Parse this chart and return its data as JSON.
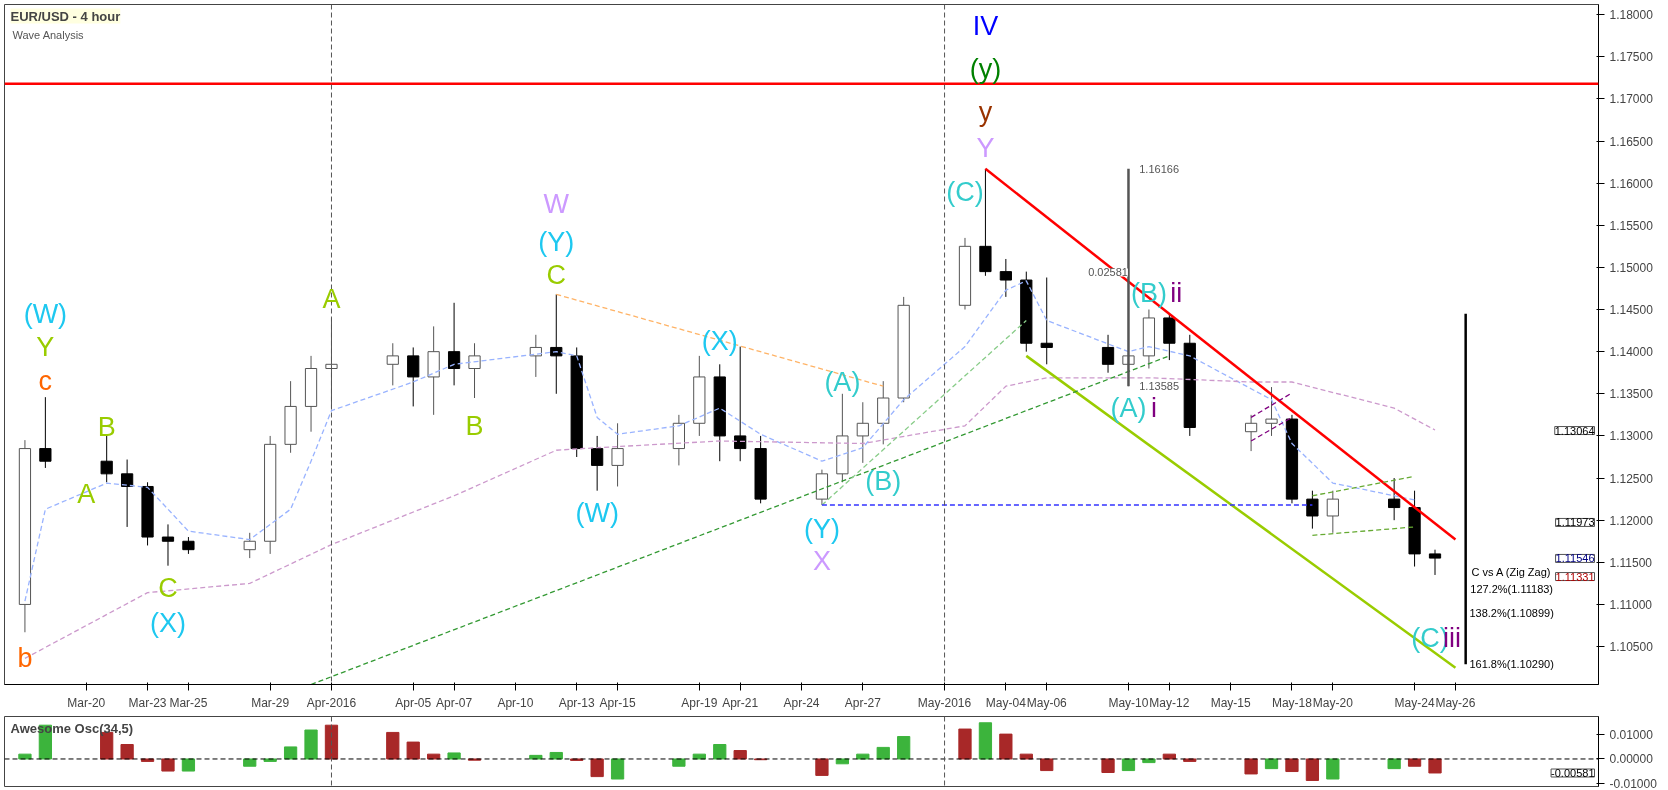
{
  "chart_data": [
    {
      "type": "candlestick",
      "title": "EUR/USD - 4 hour",
      "subtitle": "Wave Analysis",
      "x": [
        "2016-03-17",
        "2016-03-18",
        "2016-03-21",
        "2016-03-22",
        "2016-03-23",
        "2016-03-24",
        "2016-03-25",
        "2016-03-28",
        "2016-03-29",
        "2016-03-30",
        "2016-03-31",
        "2016-04-01",
        "2016-04-04",
        "2016-04-05",
        "2016-04-06",
        "2016-04-07",
        "2016-04-08",
        "2016-04-11",
        "2016-04-12",
        "2016-04-13",
        "2016-04-14",
        "2016-04-15",
        "2016-04-18",
        "2016-04-19",
        "2016-04-20",
        "2016-04-21",
        "2016-04-22",
        "2016-04-25",
        "2016-04-26",
        "2016-04-27",
        "2016-04-28",
        "2016-04-29",
        "2016-05-02",
        "2016-05-03",
        "2016-05-04",
        "2016-05-05",
        "2016-05-06",
        "2016-05-09",
        "2016-05-10",
        "2016-05-11",
        "2016-05-12",
        "2016-05-13",
        "2016-05-16",
        "2016-05-17",
        "2016-05-18",
        "2016-05-19",
        "2016-05-20",
        "2016-05-23",
        "2016-05-24",
        "2016-05-25"
      ],
      "ohlc": [
        [
          1.11,
          1.1295,
          1.1067,
          1.1285
        ],
        [
          1.1285,
          1.1346,
          1.1262,
          1.127
        ],
        [
          1.127,
          1.13,
          1.1245,
          1.1255
        ],
        [
          1.1255,
          1.1272,
          1.1192,
          1.124
        ],
        [
          1.124,
          1.1245,
          1.117,
          1.118
        ],
        [
          1.118,
          1.1195,
          1.1146,
          1.1175
        ],
        [
          1.1175,
          1.118,
          1.116,
          1.1165
        ],
        [
          1.1165,
          1.1185,
          1.1155,
          1.1175
        ],
        [
          1.1175,
          1.13,
          1.116,
          1.129
        ],
        [
          1.129,
          1.1365,
          1.128,
          1.1335
        ],
        [
          1.1335,
          1.1395,
          1.1305,
          1.138
        ],
        [
          1.138,
          1.144,
          1.1333,
          1.1385
        ],
        [
          1.1385,
          1.141,
          1.136,
          1.1395
        ],
        [
          1.1395,
          1.1405,
          1.1335,
          1.137
        ],
        [
          1.137,
          1.143,
          1.1325,
          1.14
        ],
        [
          1.14,
          1.1458,
          1.136,
          1.138
        ],
        [
          1.138,
          1.141,
          1.1345,
          1.1395
        ],
        [
          1.1395,
          1.142,
          1.137,
          1.1405
        ],
        [
          1.1405,
          1.1468,
          1.135,
          1.1395
        ],
        [
          1.1395,
          1.1405,
          1.1275,
          1.1285
        ],
        [
          1.1285,
          1.13,
          1.1235,
          1.1265
        ],
        [
          1.1265,
          1.1315,
          1.124,
          1.1285
        ],
        [
          1.1285,
          1.1325,
          1.1265,
          1.1315
        ],
        [
          1.1315,
          1.1395,
          1.13,
          1.137
        ],
        [
          1.137,
          1.1385,
          1.127,
          1.13
        ],
        [
          1.13,
          1.1406,
          1.127,
          1.1285
        ],
        [
          1.1285,
          1.13,
          1.122,
          1.1225
        ],
        [
          1.1225,
          1.126,
          1.1218,
          1.1255
        ],
        [
          1.1255,
          1.135,
          1.1245,
          1.13
        ],
        [
          1.13,
          1.134,
          1.1268,
          1.1315
        ],
        [
          1.1315,
          1.1365,
          1.129,
          1.1345
        ],
        [
          1.1345,
          1.1465,
          1.134,
          1.1455
        ],
        [
          1.1455,
          1.1535,
          1.145,
          1.1525
        ],
        [
          1.1525,
          1.1617,
          1.149,
          1.1495
        ],
        [
          1.1495,
          1.151,
          1.1465,
          1.1485
        ],
        [
          1.1485,
          1.1495,
          1.14,
          1.141
        ],
        [
          1.141,
          1.1488,
          1.1385,
          1.1405
        ],
        [
          1.1405,
          1.142,
          1.1375,
          1.1385
        ],
        [
          1.1385,
          1.1405,
          1.1359,
          1.1395
        ],
        [
          1.1395,
          1.145,
          1.138,
          1.144
        ],
        [
          1.144,
          1.1445,
          1.139,
          1.141
        ],
        [
          1.141,
          1.142,
          1.13,
          1.131
        ],
        [
          1.1305,
          1.1325,
          1.1282,
          1.1315
        ],
        [
          1.1315,
          1.1358,
          1.13,
          1.132
        ],
        [
          1.132,
          1.1325,
          1.122,
          1.1225
        ],
        [
          1.1225,
          1.1235,
          1.119,
          1.1205
        ],
        [
          1.1205,
          1.1235,
          1.1185,
          1.1225
        ],
        [
          1.1225,
          1.125,
          1.12,
          1.1215
        ],
        [
          1.1215,
          1.1235,
          1.1145,
          1.116
        ],
        [
          1.116,
          1.1165,
          1.1135,
          1.1155
        ]
      ],
      "xlim": [
        "2016-03-16",
        "2016-06-02"
      ],
      "xticks": [
        {
          "value": "2016-03-20",
          "label": "Mar-20"
        },
        {
          "value": "2016-03-23",
          "label": "Mar-23"
        },
        {
          "value": "2016-03-25",
          "label": "Mar-25"
        },
        {
          "value": "2016-03-29",
          "label": "Mar-29"
        },
        {
          "value": "2016-04-01",
          "label": "Apr-2016"
        },
        {
          "value": "2016-04-05",
          "label": "Apr-05"
        },
        {
          "value": "2016-04-07",
          "label": "Apr-07"
        },
        {
          "value": "2016-04-10",
          "label": "Apr-10"
        },
        {
          "value": "2016-04-13",
          "label": "Apr-13"
        },
        {
          "value": "2016-04-15",
          "label": "Apr-15"
        },
        {
          "value": "2016-04-19",
          "label": "Apr-19"
        },
        {
          "value": "2016-04-21",
          "label": "Apr-21"
        },
        {
          "value": "2016-04-24",
          "label": "Apr-24"
        },
        {
          "value": "2016-04-27",
          "label": "Apr-27"
        },
        {
          "value": "2016-05-01",
          "label": "May-2016"
        },
        {
          "value": "2016-05-04",
          "label": "May-04"
        },
        {
          "value": "2016-05-06",
          "label": "May-06"
        },
        {
          "value": "2016-05-10",
          "label": "May-10"
        },
        {
          "value": "2016-05-12",
          "label": "May-12"
        },
        {
          "value": "2016-05-15",
          "label": "May-15"
        },
        {
          "value": "2016-05-18",
          "label": "May-18"
        },
        {
          "value": "2016-05-20",
          "label": "May-20"
        },
        {
          "value": "2016-05-24",
          "label": "May-24"
        },
        {
          "value": "2016-05-26",
          "label": "May-26"
        }
      ],
      "ylim": [
        1.1005,
        1.1812
      ],
      "yticks": [
        {
          "value": 1.105,
          "label": "1.10500"
        },
        {
          "value": 1.11,
          "label": "1.11000"
        },
        {
          "value": 1.115,
          "label": "1.11500"
        },
        {
          "value": 1.12,
          "label": "1.12000"
        },
        {
          "value": 1.125,
          "label": "1.12500"
        },
        {
          "value": 1.13,
          "label": "1.13000"
        },
        {
          "value": 1.135,
          "label": "1.13500"
        },
        {
          "value": 1.14,
          "label": "1.14000"
        },
        {
          "value": 1.145,
          "label": "1.14500"
        },
        {
          "value": 1.15,
          "label": "1.15000"
        },
        {
          "value": 1.155,
          "label": "1.15500"
        },
        {
          "value": 1.16,
          "label": "1.16000"
        },
        {
          "value": 1.165,
          "label": "1.16500"
        },
        {
          "value": 1.17,
          "label": "1.17000"
        },
        {
          "value": 1.175,
          "label": "1.17500"
        },
        {
          "value": 1.18,
          "label": "1.18000"
        }
      ],
      "series": [
        {
          "type": "line",
          "color": "#99b3ff",
          "line_style": "dashed",
          "x": [
            "2016-03-17",
            "2016-03-18",
            "2016-03-21",
            "2016-03-23",
            "2016-03-25",
            "2016-03-28",
            "2016-03-30",
            "2016-03-31",
            "2016-04-01",
            "2016-04-05",
            "2016-04-07",
            "2016-04-12",
            "2016-04-13",
            "2016-04-14",
            "2016-04-15",
            "2016-04-18",
            "2016-04-20",
            "2016-04-22",
            "2016-04-25",
            "2016-04-27",
            "2016-04-29",
            "2016-05-02",
            "2016-05-04",
            "2016-05-05",
            "2016-05-06",
            "2016-05-10",
            "2016-05-11",
            "2016-05-13",
            "2016-05-17",
            "2016-05-18",
            "2016-05-20",
            "2016-05-24"
          ],
          "values": [
            1.1104,
            1.1213,
            1.1244,
            1.1239,
            1.1187,
            1.1177,
            1.1213,
            1.127,
            1.133,
            1.1364,
            1.1385,
            1.14,
            1.1395,
            1.1322,
            1.1302,
            1.1312,
            1.1333,
            1.1302,
            1.127,
            1.1286,
            1.1343,
            1.1406,
            1.1473,
            1.1484,
            1.1437,
            1.14,
            1.1406,
            1.1395,
            1.1343,
            1.1291,
            1.1244,
            1.1224
          ]
        },
        {
          "type": "line",
          "color": "#cc99cc",
          "line_style": "dashed",
          "x": [
            "2016-03-17",
            "2016-03-23",
            "2016-03-28",
            "2016-04-01",
            "2016-04-07",
            "2016-04-12",
            "2016-04-14",
            "2016-04-20",
            "2016-04-27",
            "2016-05-02",
            "2016-05-04",
            "2016-05-06",
            "2016-05-11",
            "2016-05-16",
            "2016-05-18",
            "2016-05-23",
            "2016-05-25"
          ],
          "values": [
            1.1036,
            1.1114,
            1.1125,
            1.1171,
            1.1229,
            1.1283,
            1.1286,
            1.1294,
            1.1291,
            1.1312,
            1.1359,
            1.1369,
            1.1369,
            1.1364,
            1.1364,
            1.1333,
            1.1307
          ]
        },
        {
          "type": "line",
          "color": "#ff0000",
          "line_style": "solid",
          "x": [
            "2016-05-03",
            "2016-05-26"
          ],
          "values": [
            1.1617,
            1.1177
          ]
        },
        {
          "type": "line",
          "color": "#99cc00",
          "line_style": "solid",
          "x": [
            "2016-05-05",
            "2016-05-26"
          ],
          "values": [
            1.1395,
            1.1025
          ]
        },
        {
          "type": "line",
          "color": "#339933",
          "line_style": "dashed",
          "x": [
            "2016-03-31",
            "2016-05-12"
          ],
          "values": [
            1.1005,
            1.1395
          ]
        },
        {
          "type": "line",
          "color": "#88cc88",
          "line_style": "dashed",
          "x": [
            "2016-04-25",
            "2016-05-05"
          ],
          "values": [
            1.1218,
            1.1437
          ]
        },
        {
          "type": "line",
          "color": "#ffb366",
          "line_style": "dashed",
          "x": [
            "2016-04-12",
            "2016-04-28"
          ],
          "values": [
            1.1468,
            1.1359
          ]
        },
        {
          "type": "line",
          "color": "#3333ff",
          "line_style": "dashed",
          "x": [
            "2016-04-25",
            "2016-05-19"
          ],
          "values": [
            1.1218,
            1.1218
          ]
        },
        {
          "type": "line",
          "color": "#800080",
          "line_style": "dashed",
          "x": [
            "2016-05-16",
            "2016-05-18"
          ],
          "values": [
            1.1322,
            1.1351
          ]
        },
        {
          "type": "line",
          "color": "#800080",
          "line_style": "dashed",
          "x": [
            "2016-05-16",
            "2016-05-18"
          ],
          "values": [
            1.1294,
            1.1322
          ]
        },
        {
          "type": "line",
          "color": "#66aa33",
          "line_style": "dashed",
          "x": [
            "2016-05-19",
            "2016-05-24"
          ],
          "values": [
            1.1229,
            1.1252
          ]
        },
        {
          "type": "line",
          "color": "#66aa33",
          "line_style": "dashed",
          "x": [
            "2016-05-19",
            "2016-05-24"
          ],
          "values": [
            1.1182,
            1.1192
          ]
        },
        {
          "type": "line",
          "color": "#555555",
          "line_style": "solid",
          "x": [
            "2016-05-10",
            "2016-05-10"
          ],
          "values": [
            1.1359,
            1.1617
          ]
        },
        {
          "type": "line",
          "color": "#000000",
          "line_style": "solid",
          "x": [
            "2016-05-26T12:00",
            "2016-05-26T12:00"
          ],
          "values": [
            1.1445,
            1.1029
          ]
        }
      ],
      "annotations": [
        "(W)",
        "Y",
        "c",
        "b",
        "A",
        "B",
        "C",
        "(X)",
        "A",
        "B",
        "W",
        "(Y)",
        "C",
        "(W)",
        "(X)",
        "(A)",
        "(B)",
        "(Y)",
        "X",
        "(C)",
        "Y",
        "y",
        "(y)",
        "IV",
        "(B)",
        "ii",
        "(A)",
        "i",
        "(C)",
        "iii",
        "1.16166",
        "0.02581",
        "1.13585",
        "C vs A (Zig Zag)",
        "127.2%(1.11183)",
        "138.2%(1.10899)",
        "161.8%(1.10290)",
        "1.13064",
        "1.11973",
        "1.11546",
        "1.11331"
      ],
      "ref_lines": [
        {
          "axis": "y",
          "value": 1.1718,
          "color": "#ff0000",
          "line_style": "solid"
        },
        {
          "axis": "x",
          "value": "2016-04-01",
          "color": "#555555",
          "line_style": "dashed"
        },
        {
          "axis": "x",
          "value": "2016-05-01",
          "color": "#555555",
          "line_style": "dashed"
        }
      ],
      "grid": false
    },
    {
      "type": "bar",
      "title": "Awesome Osc(34,5)",
      "x": [
        "2016-03-17",
        "2016-03-18",
        "2016-03-21",
        "2016-03-22",
        "2016-03-23",
        "2016-03-24",
        "2016-03-25",
        "2016-03-28",
        "2016-03-29",
        "2016-03-30",
        "2016-03-31",
        "2016-04-01",
        "2016-04-04",
        "2016-04-05",
        "2016-04-06",
        "2016-04-07",
        "2016-04-08",
        "2016-04-11",
        "2016-04-12",
        "2016-04-13",
        "2016-04-14",
        "2016-04-15",
        "2016-04-18",
        "2016-04-19",
        "2016-04-20",
        "2016-04-21",
        "2016-04-22",
        "2016-04-25",
        "2016-04-26",
        "2016-04-27",
        "2016-04-28",
        "2016-04-29",
        "2016-05-02",
        "2016-05-03",
        "2016-05-04",
        "2016-05-05",
        "2016-05-06",
        "2016-05-09",
        "2016-05-10",
        "2016-05-11",
        "2016-05-12",
        "2016-05-13",
        "2016-05-16",
        "2016-05-17",
        "2016-05-18",
        "2016-05-19",
        "2016-05-20",
        "2016-05-23",
        "2016-05-24",
        "2016-05-25"
      ],
      "values": [
        0.002,
        0.014,
        0.011,
        0.006,
        -0.001,
        -0.005,
        -0.005,
        -0.003,
        -0.001,
        0.005,
        0.012,
        0.014,
        0.011,
        0.007,
        0.002,
        0.0025,
        -0.0005,
        0.0015,
        0.0027,
        -0.0006,
        -0.0073,
        -0.0083,
        -0.003,
        0.002,
        0.006,
        0.0035,
        -0.0003,
        -0.0068,
        -0.002,
        0.002,
        0.0048,
        0.0093,
        0.0124,
        0.015,
        0.0103,
        0.002,
        -0.0048,
        -0.0056,
        -0.0048,
        -0.0015,
        0.002,
        -0.001,
        -0.0062,
        -0.004,
        -0.0052,
        -0.0089,
        -0.0083,
        -0.004,
        -0.003,
        -0.0058
      ],
      "colors": [
        "#3cb43c",
        "#3cb43c",
        "#a82828",
        "#a82828",
        "#a82828",
        "#a82828",
        "#3cb43c",
        "#3cb43c",
        "#3cb43c",
        "#3cb43c",
        "#3cb43c",
        "#a82828",
        "#a82828",
        "#a82828",
        "#a82828",
        "#3cb43c",
        "#a82828",
        "#3cb43c",
        "#3cb43c",
        "#a82828",
        "#a82828",
        "#3cb43c",
        "#3cb43c",
        "#3cb43c",
        "#3cb43c",
        "#a82828",
        "#a82828",
        "#a82828",
        "#3cb43c",
        "#3cb43c",
        "#3cb43c",
        "#3cb43c",
        "#a82828",
        "#3cb43c",
        "#a82828",
        "#a82828",
        "#a82828",
        "#a82828",
        "#3cb43c",
        "#3cb43c",
        "#a82828",
        "#a82828",
        "#a82828",
        "#3cb43c",
        "#a82828",
        "#a82828",
        "#3cb43c",
        "#3cb43c",
        "#a82828",
        "#a82828"
      ],
      "xlim": [
        "2016-03-16",
        "2016-06-02"
      ],
      "ylim": [
        -0.0114,
        0.0176
      ],
      "yticks": [
        {
          "value": -0.01,
          "label": "-0.01000"
        },
        {
          "value": 0,
          "label": "0.00000"
        },
        {
          "value": 0.01,
          "label": "0.01000"
        }
      ],
      "annotations": [
        "-0.00581"
      ],
      "ref_lines": [
        {
          "axis": "y",
          "value": 0,
          "color": "#000000",
          "line_style": "dashed"
        },
        {
          "axis": "x",
          "value": "2016-04-01",
          "color": "#555555",
          "line_style": "dashed"
        },
        {
          "axis": "x",
          "value": "2016-05-01",
          "color": "#555555",
          "line_style": "dashed"
        }
      ],
      "tick_labels": "y",
      "grid": false
    }
  ]
}
